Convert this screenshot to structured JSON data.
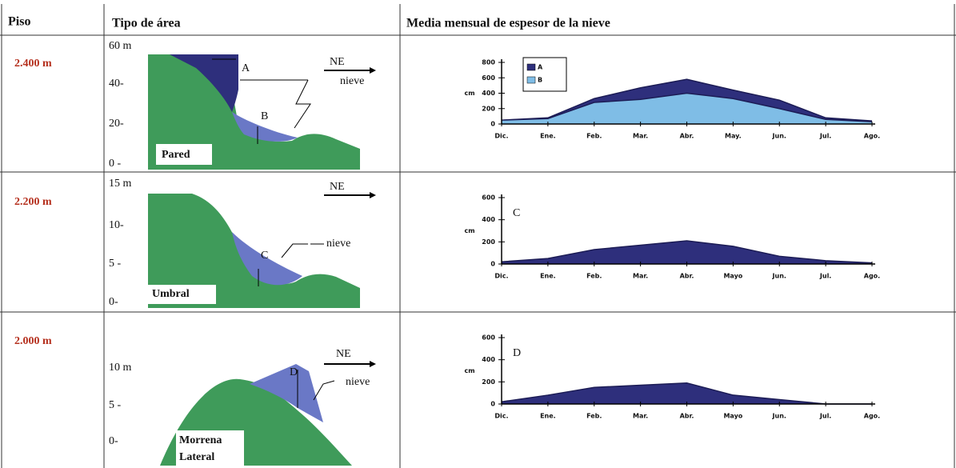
{
  "table": {
    "headers": [
      "Piso",
      "Tipo de área",
      "Media mensual de espesor de la nieve"
    ],
    "rows": [
      {
        "piso": "2.400 m",
        "axis_labels": [
          "60 m",
          "40-",
          "20-",
          "0 -"
        ],
        "marks": [
          "A",
          "B"
        ],
        "direction": "NE",
        "snow": "nieve",
        "area": "Pared"
      },
      {
        "piso": "2.200 m",
        "axis_labels": [
          "15 m",
          "10-",
          "5 -",
          "0-"
        ],
        "marks": [
          "C"
        ],
        "direction": "NE",
        "snow": "nieve",
        "area": "Umbral"
      },
      {
        "piso": "2.000 m",
        "axis_labels": [
          "10 m",
          "5 -",
          "0-"
        ],
        "marks": [
          "D"
        ],
        "direction": "NE",
        "snow": "nieve",
        "area": [
          "Morrena",
          "Lateral"
        ]
      }
    ]
  },
  "chart_data": [
    {
      "type": "area",
      "ylabel": "cm",
      "legend": "top-left",
      "categories": [
        "Dic.",
        "Ene.",
        "Feb.",
        "Mar.",
        "Abr.",
        "May.",
        "Jun.",
        "Jul.",
        "Ago."
      ],
      "series": [
        {
          "name": "A",
          "color": "#2e2f7c",
          "values": [
            50,
            80,
            330,
            470,
            580,
            440,
            310,
            80,
            40
          ]
        },
        {
          "name": "B",
          "color": "#7fbde6",
          "values": [
            50,
            70,
            280,
            320,
            400,
            330,
            200,
            60,
            30
          ]
        }
      ],
      "ylim": [
        0,
        800
      ],
      "yticks": [
        0,
        200,
        400,
        600,
        800
      ]
    },
    {
      "type": "area",
      "ylabel": "cm",
      "annotation": "C",
      "categories": [
        "Dic.",
        "Ene.",
        "Feb.",
        "Mar.",
        "Abr.",
        "Mayo",
        "Jun.",
        "Jul.",
        "Ago."
      ],
      "values": [
        20,
        50,
        130,
        170,
        210,
        160,
        70,
        30,
        10
      ],
      "color": "#2e2f7c",
      "ylim": [
        0,
        600
      ],
      "yticks": [
        0,
        200,
        400,
        600
      ]
    },
    {
      "type": "area",
      "ylabel": "cm",
      "annotation": "D",
      "categories": [
        "Dic.",
        "Ene.",
        "Feb.",
        "Mar.",
        "Abr.",
        "Mayo",
        "Jun.",
        "Jul.",
        "Ago."
      ],
      "values": [
        20,
        80,
        150,
        170,
        190,
        80,
        40,
        0,
        0
      ],
      "color": "#2e2f7c",
      "ylim": [
        0,
        600
      ],
      "yticks": [
        0,
        200,
        400,
        600
      ]
    }
  ]
}
